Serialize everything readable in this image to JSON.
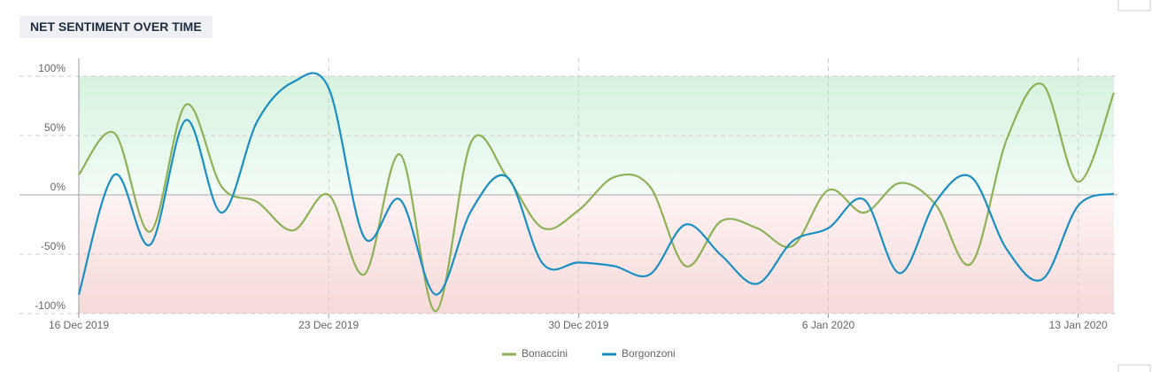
{
  "chart_data": {
    "type": "line",
    "title": "NET SENTIMENT OVER TIME",
    "x": [
      "2019-12-16",
      "2019-12-17",
      "2019-12-18",
      "2019-12-19",
      "2019-12-20",
      "2019-12-21",
      "2019-12-22",
      "2019-12-23",
      "2019-12-24",
      "2019-12-25",
      "2019-12-26",
      "2019-12-27",
      "2019-12-28",
      "2019-12-29",
      "2019-12-30",
      "2019-12-31",
      "2020-01-01",
      "2020-01-02",
      "2020-01-03",
      "2020-01-04",
      "2020-01-05",
      "2020-01-06",
      "2020-01-07",
      "2020-01-08",
      "2020-01-09",
      "2020-01-10",
      "2020-01-11",
      "2020-01-12",
      "2020-01-13",
      "2020-01-14"
    ],
    "xlim": [
      "2019-12-16",
      "2020-01-14"
    ],
    "xticks": [
      {
        "value": "2019-12-16",
        "label": "16 Dec 2019"
      },
      {
        "value": "2019-12-23",
        "label": "23 Dec 2019"
      },
      {
        "value": "2019-12-30",
        "label": "30 Dec 2019"
      },
      {
        "value": "2020-01-06",
        "label": "6 Jan 2020"
      },
      {
        "value": "2020-01-13",
        "label": "13 Jan 2020"
      }
    ],
    "ylim": [
      -100,
      100
    ],
    "yticks": [
      {
        "value": -100,
        "label": "-100%"
      },
      {
        "value": -50,
        "label": "-50%"
      },
      {
        "value": 0,
        "label": "0%"
      },
      {
        "value": 50,
        "label": "50%"
      },
      {
        "value": 100,
        "label": "100%"
      }
    ],
    "grid": true,
    "legend": "bottom",
    "series": [
      {
        "name": "Bonaccini",
        "color": "#8db255",
        "values": [
          17,
          52,
          -31,
          76,
          7,
          -6,
          -30,
          0,
          -67,
          34,
          -98,
          45,
          15,
          -28,
          -13,
          15,
          7,
          -60,
          -22,
          -28,
          -43,
          4,
          -15,
          10,
          -8,
          -58,
          47,
          93,
          11,
          86
        ]
      },
      {
        "name": "Borgonzoni",
        "color": "#1a8fc4",
        "values": [
          -84,
          17,
          -42,
          63,
          -15,
          62,
          95,
          90,
          -36,
          -4,
          -84,
          -13,
          15,
          -58,
          -57,
          -60,
          -67,
          -25,
          -51,
          -75,
          -39,
          -28,
          -4,
          -66,
          -6,
          15,
          -46,
          -71,
          -9,
          1
        ]
      }
    ]
  }
}
